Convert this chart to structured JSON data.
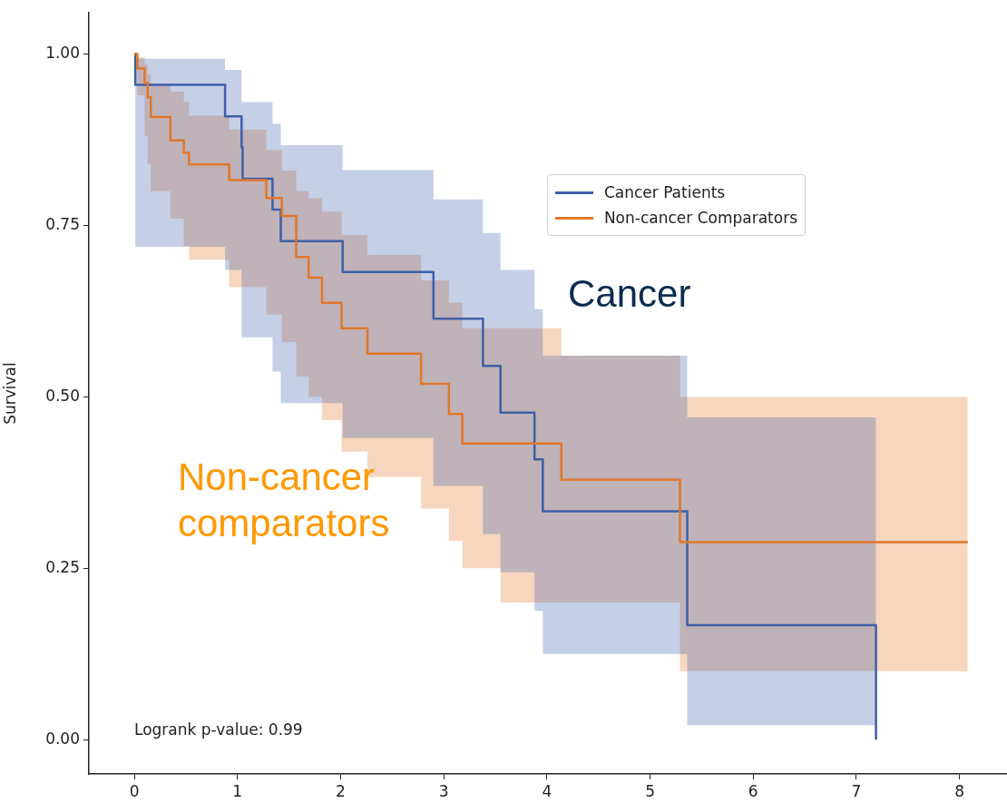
{
  "chart_data": {
    "type": "step",
    "ylabel": "Survival",
    "xlim": [
      -0.44,
      8.46
    ],
    "ylim": [
      -0.05,
      1.06
    ],
    "xticks": [
      0,
      1,
      2,
      3,
      4,
      5,
      6,
      7,
      8
    ],
    "yticks": [
      {
        "value": 0,
        "label": "0.00"
      },
      {
        "value": 0.25,
        "label": "0.25"
      },
      {
        "value": 0.5,
        "label": "0.50"
      },
      {
        "value": 0.75,
        "label": "0.75"
      },
      {
        "value": 1,
        "label": "1.00"
      }
    ],
    "grid": false,
    "legend": "top right",
    "series": [
      {
        "name": "Cancer Patients",
        "color": "#3f5fa8",
        "x": [
          0,
          0.01,
          0.88,
          1.04,
          1.05,
          1.34,
          1.42,
          2.02,
          2.9,
          3.38,
          3.55,
          3.88,
          3.96,
          5.36,
          7.19
        ],
        "values": [
          1.0,
          0.955,
          0.909,
          0.864,
          0.818,
          0.773,
          0.727,
          0.682,
          0.614,
          0.545,
          0.477,
          0.409,
          0.333,
          0.167,
          0.0
        ],
        "upper": [
          1.0,
          0.993,
          0.977,
          0.93,
          0.93,
          0.898,
          0.867,
          0.831,
          0.788,
          0.739,
          0.685,
          0.628,
          0.56,
          0.47,
          0.47
        ],
        "lower": [
          1.0,
          0.719,
          0.685,
          0.587,
          0.587,
          0.537,
          0.491,
          0.44,
          0.37,
          0.3,
          0.244,
          0.188,
          0.125,
          0.021,
          0.021
        ]
      },
      {
        "name": "Non-cancer Comparators",
        "color": "#e0772a",
        "x": [
          0,
          0.03,
          0.1,
          0.13,
          0.16,
          0.35,
          0.48,
          0.53,
          0.92,
          1.28,
          1.43,
          1.57,
          1.69,
          1.82,
          2.01,
          2.26,
          2.78,
          3.05,
          3.18,
          3.55,
          4.14,
          5.29,
          8.08
        ],
        "values": [
          1.0,
          0.979,
          0.958,
          0.937,
          0.908,
          0.874,
          0.856,
          0.839,
          0.816,
          0.79,
          0.764,
          0.704,
          0.674,
          0.637,
          0.6,
          0.563,
          0.519,
          0.475,
          0.432,
          0.432,
          0.379,
          0.288,
          0.288
        ],
        "upper": [
          1.0,
          0.995,
          0.985,
          0.97,
          0.955,
          0.945,
          0.93,
          0.91,
          0.89,
          0.86,
          0.83,
          0.8,
          0.79,
          0.77,
          0.736,
          0.707,
          0.67,
          0.637,
          0.6,
          0.6,
          0.56,
          0.5,
          0.5
        ],
        "lower": [
          1.0,
          0.94,
          0.88,
          0.84,
          0.8,
          0.76,
          0.72,
          0.7,
          0.66,
          0.62,
          0.58,
          0.53,
          0.5,
          0.466,
          0.42,
          0.383,
          0.337,
          0.29,
          0.25,
          0.2,
          0.2,
          0.1,
          0.1
        ]
      }
    ],
    "annotations": [
      "Cancer",
      "Non-cancer comparators",
      "Logrank p-value: 0.99"
    ]
  }
}
